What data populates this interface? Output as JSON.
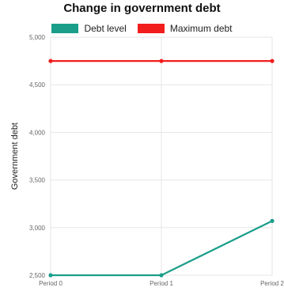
{
  "chart_data": {
    "type": "line",
    "title": "Change in government debt",
    "xlabel": "",
    "ylabel": "Government debt",
    "categories": [
      "Period 0",
      "Period 1",
      "Period 2"
    ],
    "series": [
      {
        "name": "Debt level",
        "values": [
          2500,
          2500,
          3070
        ],
        "color": "#1a9e8a"
      },
      {
        "name": "Maximum debt",
        "values": [
          4750,
          4750,
          4750
        ],
        "color": "#f21d1d"
      }
    ],
    "ylim": [
      2500,
      5000
    ],
    "yticks": [
      2500,
      3000,
      3500,
      4000,
      4500,
      5000
    ],
    "ytick_labels": [
      "2,500",
      "3,000",
      "3,500",
      "4,000",
      "4,500",
      "5,000"
    ],
    "grid": true,
    "legend_position": "top"
  }
}
